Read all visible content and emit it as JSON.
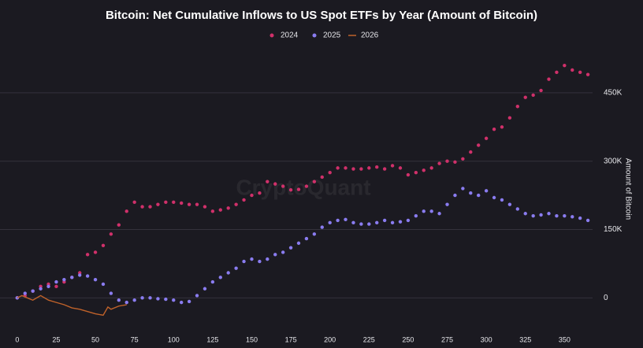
{
  "chart_data": {
    "type": "scatter",
    "title": "Bitcoin: Net Cumulative Inflows to US Spot ETFs by Year (Amount of Bitcoin)",
    "y_axis_label": "Amount of Bitcoin",
    "watermark": "CryptoQuant",
    "xlim": [
      -11,
      372
    ],
    "xticks": [
      0,
      25,
      50,
      75,
      100,
      125,
      150,
      175,
      200,
      225,
      250,
      275,
      300,
      325,
      350
    ],
    "ylim": [
      -72000,
      550000
    ],
    "yticks": [
      {
        "value": 0,
        "label": "0"
      },
      {
        "value": 150000,
        "label": "150K"
      },
      {
        "value": 300000,
        "label": "300K"
      },
      {
        "value": 450000,
        "label": "450K"
      }
    ],
    "grid": true,
    "legend": "top",
    "series": [
      {
        "name": "2024",
        "color": "#d0306a",
        "mode": "markers",
        "x": [
          0,
          5,
          10,
          15,
          20,
          25,
          30,
          35,
          40,
          45,
          50,
          55,
          60,
          65,
          70,
          75,
          80,
          85,
          90,
          95,
          100,
          105,
          110,
          115,
          120,
          125,
          130,
          135,
          140,
          145,
          150,
          155,
          160,
          165,
          170,
          175,
          180,
          185,
          190,
          195,
          200,
          205,
          210,
          215,
          220,
          225,
          230,
          235,
          240,
          245,
          250,
          255,
          260,
          265,
          270,
          275,
          280,
          285,
          290,
          295,
          300,
          305,
          310,
          315,
          320,
          325,
          330,
          335,
          340,
          345,
          350,
          355,
          360,
          365
        ],
        "values": [
          0,
          5000,
          15000,
          25000,
          30000,
          25000,
          35000,
          45000,
          55000,
          95000,
          100000,
          115000,
          140000,
          160000,
          190000,
          210000,
          200000,
          200000,
          205000,
          210000,
          210000,
          208000,
          205000,
          205000,
          200000,
          190000,
          193000,
          197000,
          205000,
          215000,
          225000,
          230000,
          255000,
          250000,
          245000,
          237000,
          238000,
          245000,
          255000,
          265000,
          275000,
          285000,
          285000,
          283000,
          283000,
          285000,
          287000,
          283000,
          290000,
          285000,
          270000,
          275000,
          280000,
          285000,
          295000,
          300000,
          298000,
          305000,
          320000,
          335000,
          350000,
          370000,
          375000,
          395000,
          420000,
          440000,
          445000,
          455000,
          480000,
          495000,
          510000,
          500000,
          495000,
          490000
        ]
      },
      {
        "name": "2025",
        "color": "#8a7cf0",
        "mode": "markers",
        "x": [
          0,
          5,
          10,
          15,
          20,
          25,
          30,
          35,
          40,
          45,
          50,
          55,
          60,
          65,
          70,
          75,
          80,
          85,
          90,
          95,
          100,
          105,
          110,
          115,
          120,
          125,
          130,
          135,
          140,
          145,
          150,
          155,
          160,
          165,
          170,
          175,
          180,
          185,
          190,
          195,
          200,
          205,
          210,
          215,
          220,
          225,
          230,
          235,
          240,
          245,
          250,
          255,
          260,
          265,
          270,
          275,
          280,
          285,
          290,
          295,
          300,
          305,
          310,
          315,
          320,
          325,
          330,
          335,
          340,
          345,
          350,
          355,
          360,
          365
        ],
        "values": [
          0,
          10000,
          15000,
          20000,
          25000,
          35000,
          40000,
          45000,
          50000,
          48000,
          40000,
          30000,
          10000,
          -5000,
          -10000,
          -5000,
          0,
          0,
          -2000,
          -3000,
          -5000,
          -10000,
          -8000,
          5000,
          20000,
          35000,
          45000,
          55000,
          65000,
          80000,
          85000,
          80000,
          85000,
          95000,
          100000,
          110000,
          120000,
          130000,
          140000,
          155000,
          165000,
          170000,
          172000,
          165000,
          162000,
          162000,
          165000,
          170000,
          165000,
          167000,
          170000,
          180000,
          190000,
          190000,
          185000,
          205000,
          225000,
          240000,
          230000,
          225000,
          235000,
          220000,
          215000,
          205000,
          195000,
          185000,
          180000,
          182000,
          185000,
          180000,
          180000,
          178000,
          175000,
          170000
        ]
      },
      {
        "name": "2026",
        "color": "#c0622a",
        "mode": "lines",
        "x": [
          0,
          3,
          5,
          10,
          15,
          20,
          25,
          30,
          35,
          40,
          45,
          50,
          55,
          58,
          60,
          65,
          70
        ],
        "values": [
          0,
          5000,
          2000,
          -5000,
          5000,
          -5000,
          -10000,
          -15000,
          -22000,
          -25000,
          -30000,
          -35000,
          -38000,
          -20000,
          -25000,
          -18000,
          -15000
        ]
      }
    ]
  }
}
